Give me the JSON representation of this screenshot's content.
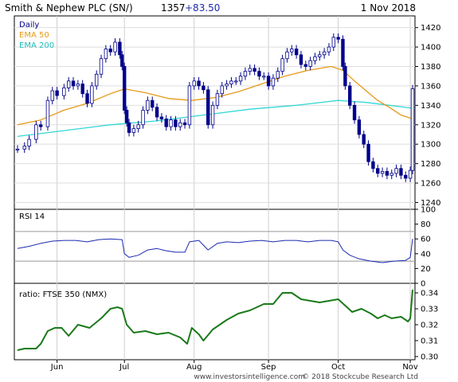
{
  "header": {
    "title": "Smith & Nephew PLC (SN/)",
    "last_price": "1357",
    "change": "+83.50",
    "date": "1 Nov 2018"
  },
  "footer": {
    "credit": "www.investorsintelligence.com",
    "copyright": "© 2018 Stockcube Research Ltd"
  },
  "colors": {
    "candle": "#00008b",
    "ema50": "#e69a17",
    "ema200": "#33d6d6",
    "rsi": "#1a2ab0",
    "ratio": "#1a7a1a",
    "header_change": "#1a2ab0"
  },
  "chart_data": [
    {
      "type": "candlestick",
      "legend": [
        "Daily",
        "EMA 50",
        "EMA 200"
      ],
      "x_ticks": [
        "Jun",
        "Jul",
        "Aug",
        "Sep",
        "Oct",
        "Nov"
      ],
      "x_tick_days": [
        17,
        46,
        76,
        108,
        138,
        169
      ],
      "y_ticks": [
        1240,
        1260,
        1280,
        1300,
        1320,
        1340,
        1360,
        1380,
        1400,
        1420
      ],
      "ylim": [
        1233,
        1432
      ],
      "xlim": [
        0,
        170
      ],
      "close": [
        [
          0,
          1295
        ],
        [
          3,
          1298
        ],
        [
          5,
          1305
        ],
        [
          8,
          1320
        ],
        [
          10,
          1318
        ],
        [
          13,
          1345
        ],
        [
          15,
          1355
        ],
        [
          17,
          1350
        ],
        [
          20,
          1358
        ],
        [
          22,
          1365
        ],
        [
          24,
          1360
        ],
        [
          26,
          1362
        ],
        [
          28,
          1352
        ],
        [
          30,
          1342
        ],
        [
          32,
          1360
        ],
        [
          34,
          1372
        ],
        [
          36,
          1388
        ],
        [
          38,
          1398
        ],
        [
          40,
          1395
        ],
        [
          42,
          1405
        ],
        [
          44,
          1392
        ],
        [
          45,
          1380
        ],
        [
          46,
          1335
        ],
        [
          47,
          1322
        ],
        [
          48,
          1312
        ],
        [
          50,
          1316
        ],
        [
          52,
          1320
        ],
        [
          54,
          1335
        ],
        [
          56,
          1345
        ],
        [
          58,
          1338
        ],
        [
          60,
          1328
        ],
        [
          62,
          1326
        ],
        [
          64,
          1318
        ],
        [
          66,
          1325
        ],
        [
          68,
          1318
        ],
        [
          70,
          1322
        ],
        [
          72,
          1320
        ],
        [
          74,
          1360
        ],
        [
          76,
          1365
        ],
        [
          78,
          1360
        ],
        [
          80,
          1356
        ],
        [
          82,
          1320
        ],
        [
          84,
          1340
        ],
        [
          86,
          1352
        ],
        [
          88,
          1360
        ],
        [
          90,
          1362
        ],
        [
          92,
          1365
        ],
        [
          94,
          1365
        ],
        [
          96,
          1370
        ],
        [
          98,
          1375
        ],
        [
          100,
          1378
        ],
        [
          102,
          1375
        ],
        [
          104,
          1370
        ],
        [
          106,
          1370
        ],
        [
          108,
          1360
        ],
        [
          110,
          1368
        ],
        [
          112,
          1375
        ],
        [
          114,
          1388
        ],
        [
          116,
          1395
        ],
        [
          118,
          1398
        ],
        [
          120,
          1392
        ],
        [
          122,
          1382
        ],
        [
          124,
          1380
        ],
        [
          126,
          1386
        ],
        [
          128,
          1390
        ],
        [
          130,
          1392
        ],
        [
          132,
          1395
        ],
        [
          134,
          1400
        ],
        [
          136,
          1410
        ],
        [
          138,
          1408
        ],
        [
          140,
          1380
        ],
        [
          141,
          1360
        ],
        [
          143,
          1340
        ],
        [
          145,
          1325
        ],
        [
          147,
          1310
        ],
        [
          149,
          1300
        ],
        [
          151,
          1282
        ],
        [
          153,
          1275
        ],
        [
          155,
          1270
        ],
        [
          157,
          1272
        ],
        [
          159,
          1268
        ],
        [
          161,
          1270
        ],
        [
          163,
          1275
        ],
        [
          165,
          1268
        ],
        [
          167,
          1265
        ],
        [
          169,
          1273
        ],
        [
          170,
          1357
        ]
      ],
      "ema50": [
        [
          0,
          1320
        ],
        [
          10,
          1325
        ],
        [
          20,
          1335
        ],
        [
          30,
          1342
        ],
        [
          40,
          1352
        ],
        [
          46,
          1357
        ],
        [
          55,
          1353
        ],
        [
          65,
          1347
        ],
        [
          75,
          1345
        ],
        [
          85,
          1348
        ],
        [
          95,
          1354
        ],
        [
          105,
          1362
        ],
        [
          115,
          1370
        ],
        [
          125,
          1376
        ],
        [
          135,
          1380
        ],
        [
          140,
          1376
        ],
        [
          145,
          1365
        ],
        [
          150,
          1355
        ],
        [
          155,
          1345
        ],
        [
          160,
          1338
        ],
        [
          165,
          1330
        ],
        [
          170,
          1326
        ]
      ],
      "ema200": [
        [
          0,
          1308
        ],
        [
          20,
          1314
        ],
        [
          40,
          1320
        ],
        [
          60,
          1324
        ],
        [
          80,
          1330
        ],
        [
          100,
          1336
        ],
        [
          120,
          1340
        ],
        [
          138,
          1345
        ],
        [
          150,
          1343
        ],
        [
          160,
          1340
        ],
        [
          170,
          1337
        ]
      ]
    },
    {
      "type": "line",
      "title": "RSI 14",
      "y_ticks": [
        0,
        20,
        40,
        60,
        80,
        100
      ],
      "ylim": [
        0,
        100
      ],
      "reference_lines": [
        30,
        70
      ],
      "values": [
        [
          0,
          47
        ],
        [
          5,
          50
        ],
        [
          10,
          54
        ],
        [
          15,
          57
        ],
        [
          20,
          58
        ],
        [
          25,
          58
        ],
        [
          30,
          56
        ],
        [
          35,
          59
        ],
        [
          40,
          60
        ],
        [
          45,
          59
        ],
        [
          46,
          40
        ],
        [
          48,
          35
        ],
        [
          52,
          38
        ],
        [
          56,
          45
        ],
        [
          60,
          47
        ],
        [
          64,
          44
        ],
        [
          68,
          42
        ],
        [
          72,
          42
        ],
        [
          74,
          56
        ],
        [
          78,
          58
        ],
        [
          82,
          45
        ],
        [
          86,
          54
        ],
        [
          90,
          56
        ],
        [
          95,
          55
        ],
        [
          100,
          57
        ],
        [
          105,
          58
        ],
        [
          110,
          56
        ],
        [
          115,
          58
        ],
        [
          120,
          58
        ],
        [
          125,
          56
        ],
        [
          130,
          58
        ],
        [
          135,
          58
        ],
        [
          138,
          56
        ],
        [
          140,
          45
        ],
        [
          143,
          38
        ],
        [
          147,
          33
        ],
        [
          152,
          30
        ],
        [
          157,
          28
        ],
        [
          162,
          30
        ],
        [
          167,
          31
        ],
        [
          169,
          35
        ],
        [
          170,
          60
        ]
      ]
    },
    {
      "type": "line",
      "title": "ratio: FTSE 350 (NMX)",
      "y_ticks": [
        0.3,
        0.31,
        0.32,
        0.33,
        0.34
      ],
      "ylim": [
        0.298,
        0.346
      ],
      "values": [
        [
          0,
          0.304
        ],
        [
          3,
          0.305
        ],
        [
          8,
          0.305
        ],
        [
          10,
          0.308
        ],
        [
          13,
          0.316
        ],
        [
          16,
          0.318
        ],
        [
          19,
          0.318
        ],
        [
          22,
          0.313
        ],
        [
          26,
          0.32
        ],
        [
          31,
          0.318
        ],
        [
          36,
          0.324
        ],
        [
          40,
          0.33
        ],
        [
          43,
          0.331
        ],
        [
          45,
          0.33
        ],
        [
          47,
          0.32
        ],
        [
          50,
          0.315
        ],
        [
          55,
          0.316
        ],
        [
          60,
          0.314
        ],
        [
          65,
          0.315
        ],
        [
          70,
          0.312
        ],
        [
          73,
          0.308
        ],
        [
          75,
          0.318
        ],
        [
          78,
          0.314
        ],
        [
          80,
          0.31
        ],
        [
          84,
          0.317
        ],
        [
          90,
          0.323
        ],
        [
          95,
          0.327
        ],
        [
          100,
          0.329
        ],
        [
          106,
          0.333
        ],
        [
          110,
          0.333
        ],
        [
          114,
          0.34
        ],
        [
          118,
          0.34
        ],
        [
          122,
          0.336
        ],
        [
          126,
          0.335
        ],
        [
          130,
          0.334
        ],
        [
          134,
          0.335
        ],
        [
          138,
          0.336
        ],
        [
          141,
          0.332
        ],
        [
          144,
          0.328
        ],
        [
          148,
          0.33
        ],
        [
          152,
          0.327
        ],
        [
          155,
          0.324
        ],
        [
          158,
          0.326
        ],
        [
          161,
          0.324
        ],
        [
          165,
          0.325
        ],
        [
          168,
          0.322
        ],
        [
          169,
          0.324
        ],
        [
          170,
          0.342
        ]
      ]
    }
  ]
}
